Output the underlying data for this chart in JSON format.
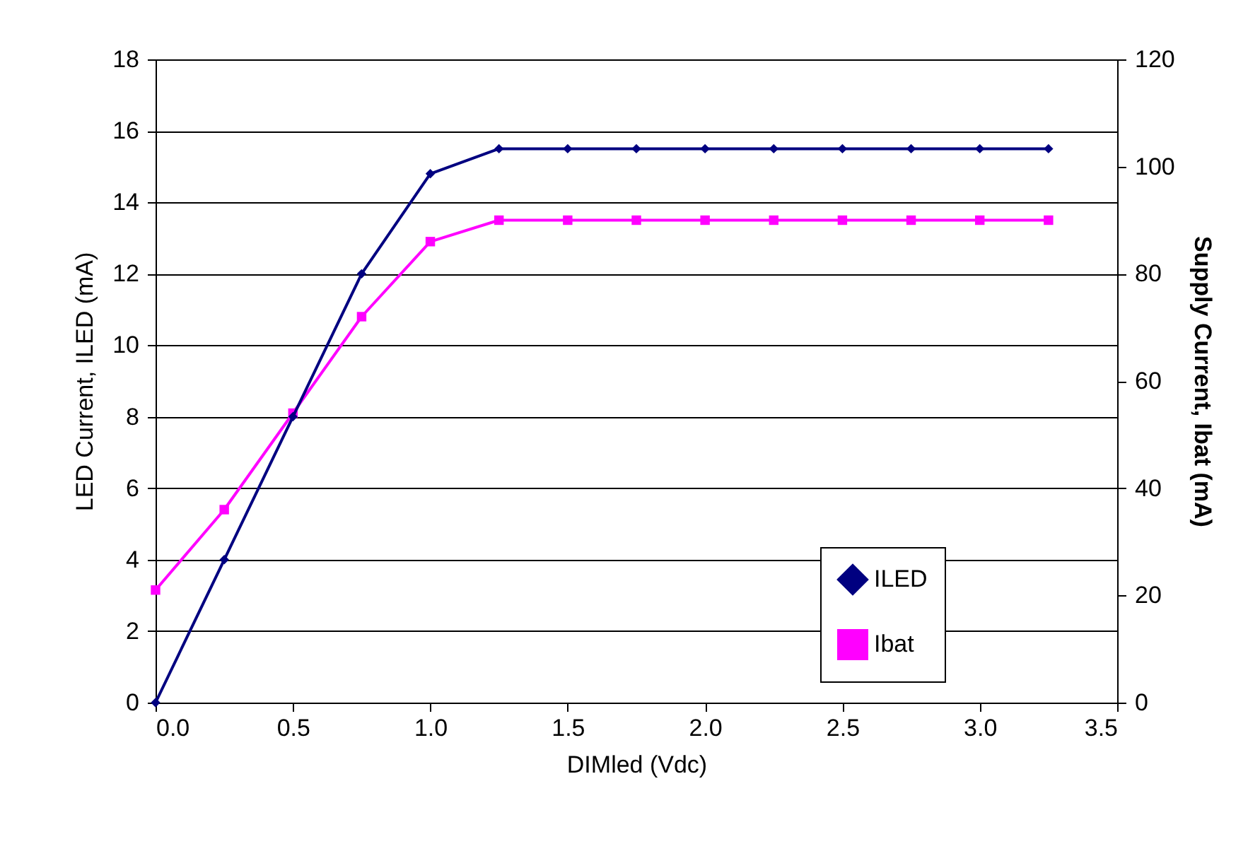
{
  "chart_data": {
    "type": "line",
    "xlabel": "DIMled (Vdc)",
    "ylabel": "LED Current, ILED (mA)",
    "y2label": "Supply Current, Ibat (mA)",
    "x": [
      0,
      0.25,
      0.5,
      0.75,
      1.0,
      1.25,
      1.5,
      1.75,
      2.0,
      2.25,
      2.5,
      2.75,
      3.0,
      3.25
    ],
    "series": [
      {
        "name": "ILED",
        "color": "#000080",
        "marker": "diamond",
        "values": [
          0,
          4,
          8,
          12,
          14.8,
          15.5,
          15.5,
          15.5,
          15.5,
          15.5,
          15.5,
          15.5,
          15.5,
          15.5
        ]
      },
      {
        "name": "Ibat",
        "color": "#ff00ff",
        "marker": "square",
        "axis": "y2",
        "values": [
          21,
          36,
          54,
          72,
          86,
          90,
          90,
          90,
          90,
          90,
          90,
          90,
          90,
          90
        ]
      }
    ],
    "xlim": [
      0,
      3.5
    ],
    "xticks": [
      {
        "value": 0,
        "label": "0.0"
      },
      {
        "value": 0.5,
        "label": "0.5"
      },
      {
        "value": 1,
        "label": "1.0"
      },
      {
        "value": 1.5,
        "label": "1.5"
      },
      {
        "value": 2,
        "label": "2.0"
      },
      {
        "value": 2.5,
        "label": "2.5"
      },
      {
        "value": 3,
        "label": "3.0"
      },
      {
        "value": 3.5,
        "label": "3.5"
      }
    ],
    "ylim": [
      0,
      18
    ],
    "yticks": [
      0,
      2,
      4,
      6,
      8,
      10,
      12,
      14,
      16,
      18
    ],
    "y2lim": [
      0,
      120
    ],
    "y2ticks": [
      0,
      20,
      40,
      60,
      80,
      100,
      120
    ],
    "grid": "y",
    "legend": "bottom right",
    "line_style": "solid"
  }
}
